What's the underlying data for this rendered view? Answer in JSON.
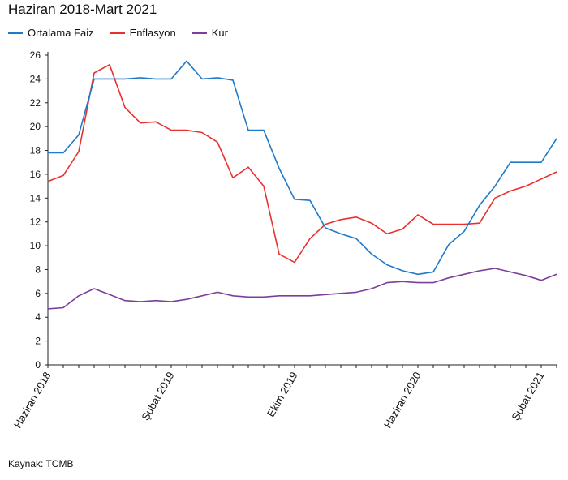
{
  "chart_data": {
    "type": "line",
    "title": "Haziran 2018-Mart 2021",
    "xlabel": "",
    "ylabel": "",
    "ylim": [
      0,
      26
    ],
    "y_ticks": [
      0,
      2,
      4,
      6,
      8,
      10,
      12,
      14,
      16,
      18,
      20,
      22,
      24,
      26
    ],
    "x_tick_labels": [
      {
        "index": 0,
        "label": "Haziran 2018"
      },
      {
        "index": 8,
        "label": "Şubat 2019"
      },
      {
        "index": 16,
        "label": "Ekim 2019"
      },
      {
        "index": 24,
        "label": "Haziran 2020"
      },
      {
        "index": 32,
        "label": "Şubat 2021"
      }
    ],
    "grid": false,
    "legend_position": "top-left",
    "series": [
      {
        "name": "Ortalama Faiz",
        "color": "#1f7ac8",
        "values": [
          17.8,
          17.8,
          19.3,
          24.0,
          24.0,
          24.0,
          24.1,
          24.0,
          24.0,
          25.5,
          24.0,
          24.1,
          23.9,
          19.7,
          19.7,
          16.5,
          13.9,
          13.8,
          11.5,
          11.0,
          10.6,
          9.3,
          8.4,
          7.9,
          7.6,
          7.8,
          10.1,
          11.2,
          13.4,
          15.0,
          17.0,
          17.0,
          17.0,
          19.0
        ]
      },
      {
        "name": "Enflasyon",
        "color": "#e8312f",
        "values": [
          15.4,
          15.9,
          17.9,
          24.5,
          25.2,
          21.6,
          20.3,
          20.4,
          19.7,
          19.7,
          19.5,
          18.7,
          15.7,
          16.6,
          15.0,
          9.3,
          8.6,
          10.6,
          11.8,
          12.2,
          12.4,
          11.9,
          11.0,
          11.4,
          12.6,
          11.8,
          11.8,
          11.8,
          11.9,
          14.0,
          14.6,
          15.0,
          15.6,
          16.2
        ]
      },
      {
        "name": "Kur",
        "color": "#7b3f99",
        "values": [
          4.7,
          4.8,
          5.8,
          6.4,
          5.9,
          5.4,
          5.3,
          5.4,
          5.3,
          5.5,
          5.8,
          6.1,
          5.8,
          5.7,
          5.7,
          5.8,
          5.8,
          5.8,
          5.9,
          6.0,
          6.1,
          6.4,
          6.9,
          7.0,
          6.9,
          6.9,
          7.3,
          7.6,
          7.9,
          8.1,
          7.8,
          7.5,
          7.1,
          7.6
        ]
      }
    ]
  },
  "source": "Kaynak: TCMB"
}
